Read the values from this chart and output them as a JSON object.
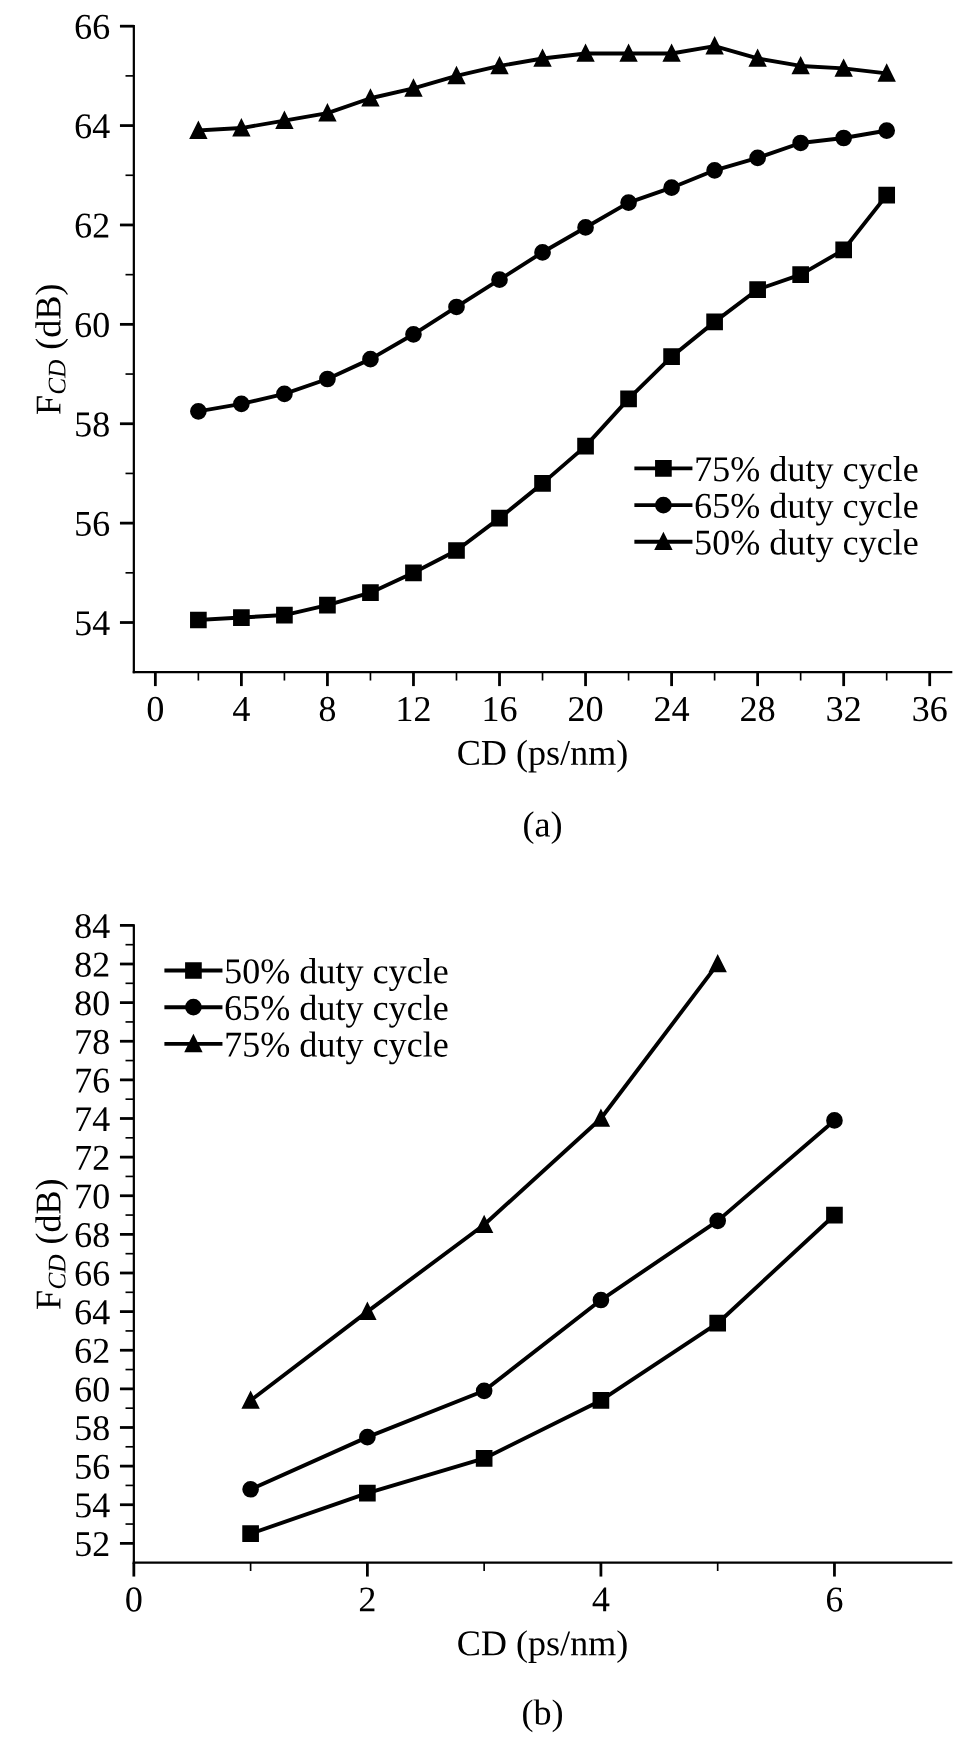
{
  "chart_data": [
    {
      "type": "line",
      "title": "(a)",
      "xlabel": "CD (ps/nm)",
      "ylabel": "F$_{CD}$ (dB)",
      "x": [
        2,
        4,
        6,
        8,
        10,
        12,
        14,
        16,
        18,
        20,
        22,
        24,
        26,
        28,
        30,
        32,
        34
      ],
      "series": [
        {
          "name": "75% duty cycle",
          "color": "#000000",
          "marker": "square",
          "values": [
            54.05,
            54.1,
            54.15,
            54.35,
            54.6,
            55.0,
            55.45,
            56.1,
            56.8,
            57.55,
            58.5,
            59.35,
            60.05,
            60.7,
            61.0,
            61.5,
            62.6
          ]
        },
        {
          "name": "65% duty cycle",
          "color": "#000000",
          "marker": "circle",
          "values": [
            58.25,
            58.4,
            58.6,
            58.9,
            59.3,
            59.8,
            60.35,
            60.9,
            61.45,
            61.95,
            62.45,
            62.75,
            63.1,
            63.35,
            63.65,
            63.75,
            63.9
          ]
        },
        {
          "name": "50% duty cycle",
          "color": "#000000",
          "marker": "triangle",
          "values": [
            63.9,
            63.95,
            64.1,
            64.25,
            64.55,
            64.75,
            65.0,
            65.2,
            65.35,
            65.45,
            65.45,
            65.45,
            65.6,
            65.35,
            65.2,
            65.15,
            65.05
          ]
        }
      ],
      "xlim": [
        -1,
        37
      ],
      "ylim": [
        53,
        66
      ],
      "xticks": [
        0,
        {
          "value": 2,
          "label": null
        },
        4,
        {
          "value": 6,
          "label": null
        },
        8,
        {
          "value": 10,
          "label": null
        },
        12,
        {
          "value": 14,
          "label": null
        },
        16,
        {
          "value": 18,
          "label": null
        },
        20,
        {
          "value": 22,
          "label": null
        },
        24,
        {
          "value": 26,
          "label": null
        },
        28,
        {
          "value": 30,
          "label": null
        },
        32,
        {
          "value": 34,
          "label": null
        },
        36
      ],
      "yticks": [
        54,
        {
          "value": 55,
          "label": null
        },
        56,
        {
          "value": 57,
          "label": null
        },
        58,
        {
          "value": 59,
          "label": null
        },
        60,
        {
          "value": 61,
          "label": null
        },
        62,
        {
          "value": 63,
          "label": null
        },
        64,
        {
          "value": 65,
          "label": null
        },
        66
      ],
      "legend": "lower right",
      "grid": false,
      "line_style": "solid"
    },
    {
      "type": "line",
      "title": "(b)",
      "xlabel": "CD (ps/nm)",
      "ylabel": "F$_{CD}$ (dB)",
      "x": [
        1,
        2,
        3,
        4,
        5,
        6
      ],
      "series": [
        {
          "name": "50% duty cycle",
          "color": "#000000",
          "marker": "square",
          "values": [
            52.5,
            54.6,
            56.4,
            59.4,
            63.4,
            69.0
          ]
        },
        {
          "name": "65% duty cycle",
          "color": "#000000",
          "marker": "circle",
          "values": [
            54.8,
            57.5,
            59.9,
            64.6,
            68.7,
            73.9
          ]
        },
        {
          "name": "75% duty cycle",
          "color": "#000000",
          "marker": "triangle",
          "values": [
            59.4,
            64.0,
            68.5,
            74.0,
            82.0,
            null
          ]
        }
      ],
      "xlim": [
        0,
        7
      ],
      "ylim": [
        51,
        84
      ],
      "xticks": [
        0,
        {
          "value": 1,
          "label": null
        },
        2,
        {
          "value": 3,
          "label": null
        },
        4,
        {
          "value": 5,
          "label": null
        },
        6
      ],
      "yticks": [
        52,
        {
          "value": 53,
          "label": null
        },
        54,
        {
          "value": 55,
          "label": null
        },
        56,
        {
          "value": 57,
          "label": null
        },
        58,
        {
          "value": 59,
          "label": null
        },
        60,
        {
          "value": 61,
          "label": null
        },
        62,
        {
          "value": 63,
          "label": null
        },
        64,
        {
          "value": 65,
          "label": null
        },
        66,
        {
          "value": 67,
          "label": null
        },
        68,
        {
          "value": 69,
          "label": null
        },
        70,
        {
          "value": 71,
          "label": null
        },
        72,
        {
          "value": 73,
          "label": null
        },
        74,
        {
          "value": 75,
          "label": null
        },
        76,
        {
          "value": 77,
          "label": null
        },
        78,
        {
          "value": 79,
          "label": null
        },
        80,
        {
          "value": 81,
          "label": null
        },
        82,
        {
          "value": 83,
          "label": null
        },
        84
      ],
      "legend": "upper left",
      "grid": false,
      "line_style": "solid"
    }
  ]
}
